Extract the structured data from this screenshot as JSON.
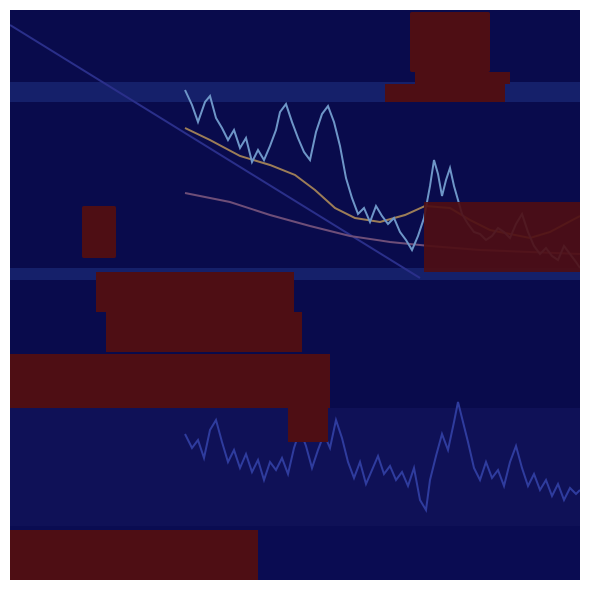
{
  "colors": {
    "background": "#090b4c",
    "band": "#15206a",
    "lower_panel": "#0f1157",
    "price_up": "#7aa6d6",
    "price_down": "#c77b93",
    "ma_fast": "#a8865c",
    "ma_slow": "#7a5a80",
    "oscillator": "#2e3a9a",
    "overlay_region": "#4e0e14"
  },
  "icons": {
    "trendline": "diagonal-trend-line",
    "price_series": "candlestick-series",
    "oscillator_series": "oscillator-line"
  },
  "bottom_axis": {
    "ticks": [
      "",
      "",
      "",
      "",
      "",
      ""
    ]
  }
}
